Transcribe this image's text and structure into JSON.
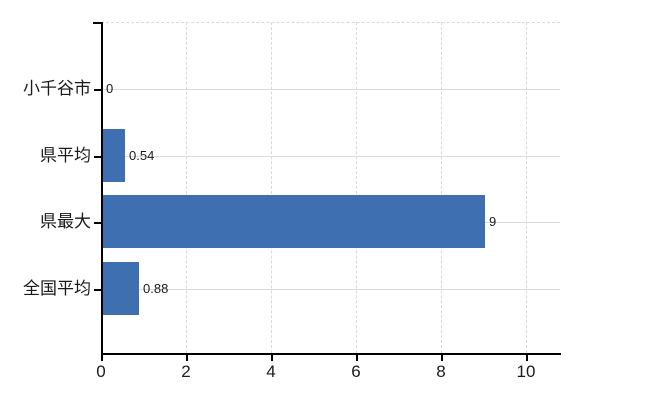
{
  "chart_data": {
    "type": "bar",
    "orientation": "horizontal",
    "title": "",
    "categories": [
      "小千谷市",
      "県平均",
      "県最大",
      "全国平均"
    ],
    "values": [
      0,
      0.54,
      9,
      0.88
    ],
    "value_labels": [
      "0",
      "0.54",
      "9",
      "0.88"
    ],
    "x_tick_labels": [
      "0",
      "2",
      "4",
      "6",
      "8",
      "10"
    ],
    "x_tick_values": [
      0,
      2,
      4,
      6,
      8,
      10
    ],
    "xlim": [
      0,
      10.8
    ],
    "grid": true,
    "grid_horizontal_style": "solid",
    "grid_vertical_style": "dashed",
    "legend_position": "none",
    "colors": {
      "bar": "#3d6fb1",
      "grid": "#d9d9d9",
      "axis": "#000000",
      "text": "#1a1a1a",
      "background": "#ffffff"
    }
  }
}
